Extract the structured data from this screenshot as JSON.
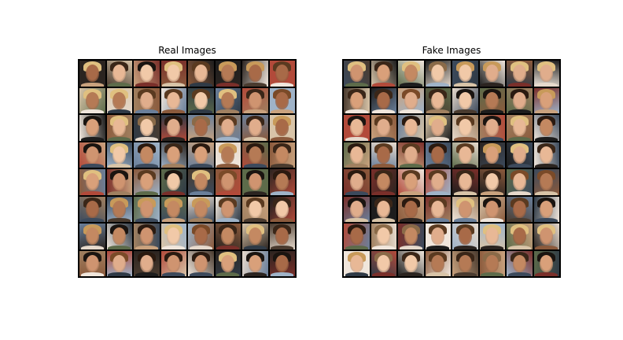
{
  "panels": [
    {
      "title": "Real Images",
      "rows": 8,
      "cols": 8,
      "image_content": "grid of 64 celebrity face photographs"
    },
    {
      "title": "Fake Images",
      "rows": 8,
      "cols": 8,
      "image_content": "grid of 64 generated face images"
    }
  ],
  "palette": {
    "backgrounds": [
      "#2b2420",
      "#c9a27e",
      "#3c4a5c",
      "#e6d9cc",
      "#1d1d1d",
      "#6a7f9a",
      "#8b5a3c",
      "#d8c4a8",
      "#4a3b2f",
      "#9fb3c8",
      "#b24a3a",
      "#5d6b4a",
      "#f0e6dc",
      "#2f3a46",
      "#a08060",
      "#7a2f2a"
    ],
    "skin": [
      "#e8b896",
      "#d9a07a",
      "#c48962",
      "#f1c9a8",
      "#b57a55",
      "#e0ad8c",
      "#cf9470",
      "#a86a48"
    ],
    "hair": [
      "#2a1a10",
      "#5a3a20",
      "#c89a5a",
      "#1a1410",
      "#7a4a28",
      "#e0c080",
      "#3a2618",
      "#8a6a48"
    ]
  }
}
